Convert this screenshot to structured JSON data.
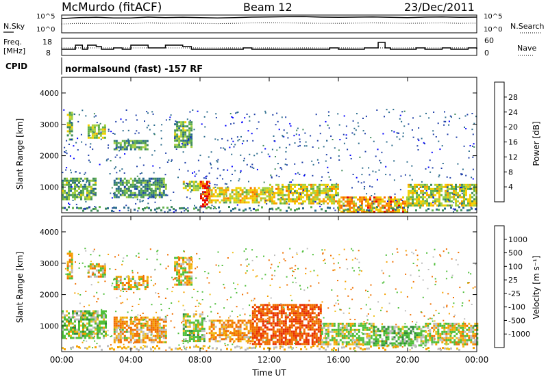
{
  "header": {
    "station": "McMurdo (fitACF)",
    "beam": "Beam 12",
    "date": "23/Dec/2011"
  },
  "noise_panel": {
    "left_label": "N.Sky",
    "left_ticks": [
      "10^5",
      "10^0"
    ],
    "right_label": "N.Search",
    "right_ticks": [
      "10^5",
      "10^0"
    ]
  },
  "freq_panel": {
    "left_label_1": "Freq.",
    "left_label_2": "[MHz]",
    "left_ticks": [
      "18",
      "8"
    ],
    "right_label": "Nave",
    "right_ticks": [
      "60",
      "0"
    ]
  },
  "cpid_panel": {
    "label": "CPID",
    "value": "normalsound (fast) -157 RF"
  },
  "x_axis": {
    "label": "Time UT",
    "ticks": [
      "00:00",
      "04:00",
      "08:00",
      "12:00",
      "16:00",
      "20:00",
      "00:00"
    ]
  },
  "power_panel": {
    "ylabel": "Slant Range [km]",
    "yticks": [
      "4000",
      "3000",
      "2000",
      "1000"
    ],
    "colorbar_label": "Power [dB]",
    "colorbar_ticks": [
      "28",
      "24",
      "20",
      "16",
      "12",
      "8",
      "4"
    ]
  },
  "velocity_panel": {
    "ylabel": "Slant Range [km]",
    "yticks": [
      "4000",
      "3000",
      "2000",
      "1000"
    ],
    "colorbar_label": "Velocity [m s⁻¹]",
    "colorbar_ticks": [
      "1000",
      "500",
      "100",
      "25",
      "-25",
      "-100",
      "-500",
      "-1000"
    ]
  },
  "colors": {
    "power_scale": [
      "#0000ff",
      "#1f3fa8",
      "#2a6b8c",
      "#3e8a5a",
      "#5fb04a",
      "#a6d040",
      "#f4d000",
      "#f6a200",
      "#f86a00",
      "#e80000"
    ],
    "velocity_scale": [
      "#1a2fc0",
      "#2e6bd0",
      "#2f8a3c",
      "#4fbf3a",
      "#bdbdbd",
      "#f0c020",
      "#f6a000",
      "#f07000",
      "#e83000",
      "#d00000"
    ]
  },
  "chart_data": [
    {
      "type": "line",
      "title": "N.Sky / N.Search",
      "x_units": "hours UT",
      "xlim": [
        0,
        24
      ],
      "series": [
        {
          "name": "N.Sky",
          "x": [
            0,
            1,
            2,
            3,
            4,
            5,
            6,
            7,
            8,
            9,
            10,
            11,
            12,
            13,
            14,
            15,
            16,
            17,
            18,
            19,
            20,
            21,
            22,
            23,
            24
          ],
          "values": [
            20000,
            40000,
            50000,
            30000,
            30000,
            60000,
            40000,
            50000,
            40000,
            30000,
            40000,
            60000,
            70000,
            80000,
            90000,
            60000,
            50000,
            60000,
            70000,
            50000,
            40000,
            60000,
            70000,
            50000,
            60000
          ]
        },
        {
          "name": "N.Search",
          "x": [
            0,
            1,
            2,
            3,
            4,
            5,
            6,
            7,
            8,
            9,
            10,
            11,
            12,
            13,
            14,
            15,
            16,
            17,
            18,
            19,
            20,
            21,
            22,
            23,
            24
          ],
          "values": [
            300,
            500,
            400,
            600,
            400,
            700,
            500,
            600,
            500,
            400,
            500,
            700,
            800,
            700,
            600,
            500,
            500,
            600,
            700,
            600,
            500,
            600,
            700,
            500,
            600
          ]
        }
      ]
    },
    {
      "type": "line",
      "title": "Freq / Nave",
      "x_units": "hours UT",
      "xlim": [
        0,
        24
      ],
      "series": [
        {
          "name": "Freq",
          "x": [
            0,
            0.5,
            0.8,
            1.2,
            1.5,
            2.0,
            2.3,
            3.0,
            3.5,
            4.0,
            4.5,
            5.0,
            5.5,
            6.0,
            6.5,
            7.0,
            7.5,
            8.0,
            8.5,
            9.0,
            10.0,
            10.5,
            11.0,
            12.0,
            13.0,
            14.0,
            15.0,
            15.5,
            16.0,
            16.5,
            17.0,
            17.5,
            18.0,
            18.3,
            18.7,
            19.0,
            19.5,
            20.0,
            20.5,
            21.0,
            21.5,
            22.0,
            22.5,
            23.0,
            23.5,
            24.0
          ],
          "values": [
            12,
            12,
            15,
            12,
            15,
            14,
            12,
            13,
            12,
            15,
            15,
            13,
            13,
            15,
            15,
            14,
            12,
            12,
            12,
            12,
            12,
            13,
            12,
            12,
            12,
            12,
            12,
            13,
            12,
            12,
            12,
            13,
            13,
            17,
            13,
            12,
            12,
            12,
            13,
            12,
            12,
            13,
            12,
            12,
            13,
            12
          ]
        },
        {
          "name": "Nave",
          "x": [
            0,
            24
          ],
          "values": [
            22,
            22
          ]
        }
      ]
    },
    {
      "type": "heatmap",
      "title": "Power",
      "x_units": "hours UT",
      "y_units": "km",
      "xlim": [
        0,
        24
      ],
      "ylim": [
        180,
        4500
      ],
      "colorbar": {
        "label": "Power [dB]",
        "range": [
          0,
          32
        ]
      },
      "regions": [
        {
          "t": [
            0.3,
            0.6
          ],
          "r": [
            2500,
            3400
          ],
          "power": 16
        },
        {
          "t": [
            0.0,
            2.0
          ],
          "r": [
            600,
            1300
          ],
          "power": 14
        },
        {
          "t": [
            1.5,
            2.5
          ],
          "r": [
            2600,
            3000
          ],
          "power": 18
        },
        {
          "t": [
            3.0,
            5.0
          ],
          "r": [
            2200,
            2500
          ],
          "power": 12
        },
        {
          "t": [
            3.0,
            6.0
          ],
          "r": [
            700,
            1300
          ],
          "power": 12
        },
        {
          "t": [
            6.5,
            7.5
          ],
          "r": [
            2300,
            3100
          ],
          "power": 14
        },
        {
          "t": [
            7.0,
            8.0
          ],
          "r": [
            900,
            1200
          ],
          "power": 18
        },
        {
          "t": [
            8.0,
            8.5
          ],
          "r": [
            400,
            1200
          ],
          "power": 30
        },
        {
          "t": [
            8.5,
            12.0
          ],
          "r": [
            500,
            1000
          ],
          "power": 20
        },
        {
          "t": [
            12.0,
            16.0
          ],
          "r": [
            500,
            1100
          ],
          "power": 20
        },
        {
          "t": [
            16.0,
            20.0
          ],
          "r": [
            200,
            700
          ],
          "power": 24
        },
        {
          "t": [
            20.0,
            24.0
          ],
          "r": [
            400,
            1100
          ],
          "power": 18
        }
      ]
    },
    {
      "type": "heatmap",
      "title": "Velocity",
      "x_units": "hours UT",
      "y_units": "km",
      "xlim": [
        0,
        24
      ],
      "ylim": [
        180,
        4500
      ],
      "colorbar": {
        "label": "Velocity [m s⁻¹]",
        "range": [
          -1000,
          1000
        ]
      },
      "regions": [
        {
          "t": [
            0.3,
            0.6
          ],
          "r": [
            2500,
            3400
          ],
          "velocity": 0
        },
        {
          "t": [
            0.0,
            2.5
          ],
          "r": [
            600,
            1500
          ],
          "velocity": 150
        },
        {
          "t": [
            1.5,
            2.5
          ],
          "r": [
            2600,
            3000
          ],
          "velocity": 0
        },
        {
          "t": [
            3.0,
            5.0
          ],
          "r": [
            2200,
            2600
          ],
          "velocity": 0
        },
        {
          "t": [
            3.0,
            6.0
          ],
          "r": [
            500,
            1300
          ],
          "velocity": -80
        },
        {
          "t": [
            6.5,
            7.5
          ],
          "r": [
            2300,
            3200
          ],
          "velocity": 0
        },
        {
          "t": [
            7.0,
            8.3
          ],
          "r": [
            500,
            1400
          ],
          "velocity": 150
        },
        {
          "t": [
            8.5,
            11.0
          ],
          "r": [
            500,
            1200
          ],
          "velocity": -100
        },
        {
          "t": [
            11.0,
            15.0
          ],
          "r": [
            400,
            1700
          ],
          "velocity": -300
        },
        {
          "t": [
            15.0,
            18.0
          ],
          "r": [
            400,
            1100
          ],
          "velocity": 100
        },
        {
          "t": [
            18.0,
            21.0
          ],
          "r": [
            400,
            1000
          ],
          "velocity": 200
        },
        {
          "t": [
            21.0,
            24.0
          ],
          "r": [
            400,
            1100
          ],
          "velocity": 60
        }
      ]
    }
  ]
}
